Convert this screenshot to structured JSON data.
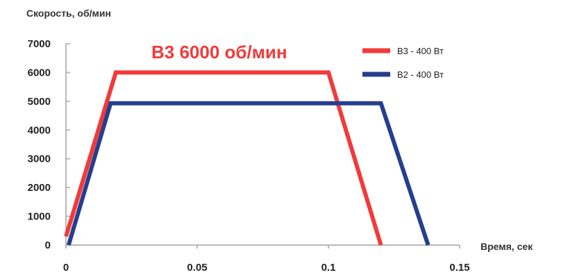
{
  "chart_data": {
    "type": "line",
    "ylabel": "Скорость, об/мин",
    "xlabel": "Время, сек",
    "annotation": "B3 6000 об/мин",
    "xlim": [
      0,
      0.15
    ],
    "ylim": [
      0,
      7000
    ],
    "x_ticks": [
      "0",
      "0.05",
      "0.1",
      "0.15"
    ],
    "y_ticks": [
      "0",
      "1000",
      "2000",
      "3000",
      "4000",
      "5000",
      "6000",
      "7000"
    ],
    "grid": false,
    "legend_position": "top-right",
    "series": [
      {
        "name": "B3 - 400 Вт",
        "color": "#f23a3a",
        "points": [
          [
            0,
            300
          ],
          [
            0.019,
            6000
          ],
          [
            0.1,
            6000
          ],
          [
            0.12,
            0
          ]
        ]
      },
      {
        "name": "B2 - 400 Вт",
        "color": "#263e8e",
        "points": [
          [
            0.001,
            0
          ],
          [
            0.017,
            4930
          ],
          [
            0.12,
            4930
          ],
          [
            0.138,
            0
          ]
        ]
      }
    ]
  }
}
